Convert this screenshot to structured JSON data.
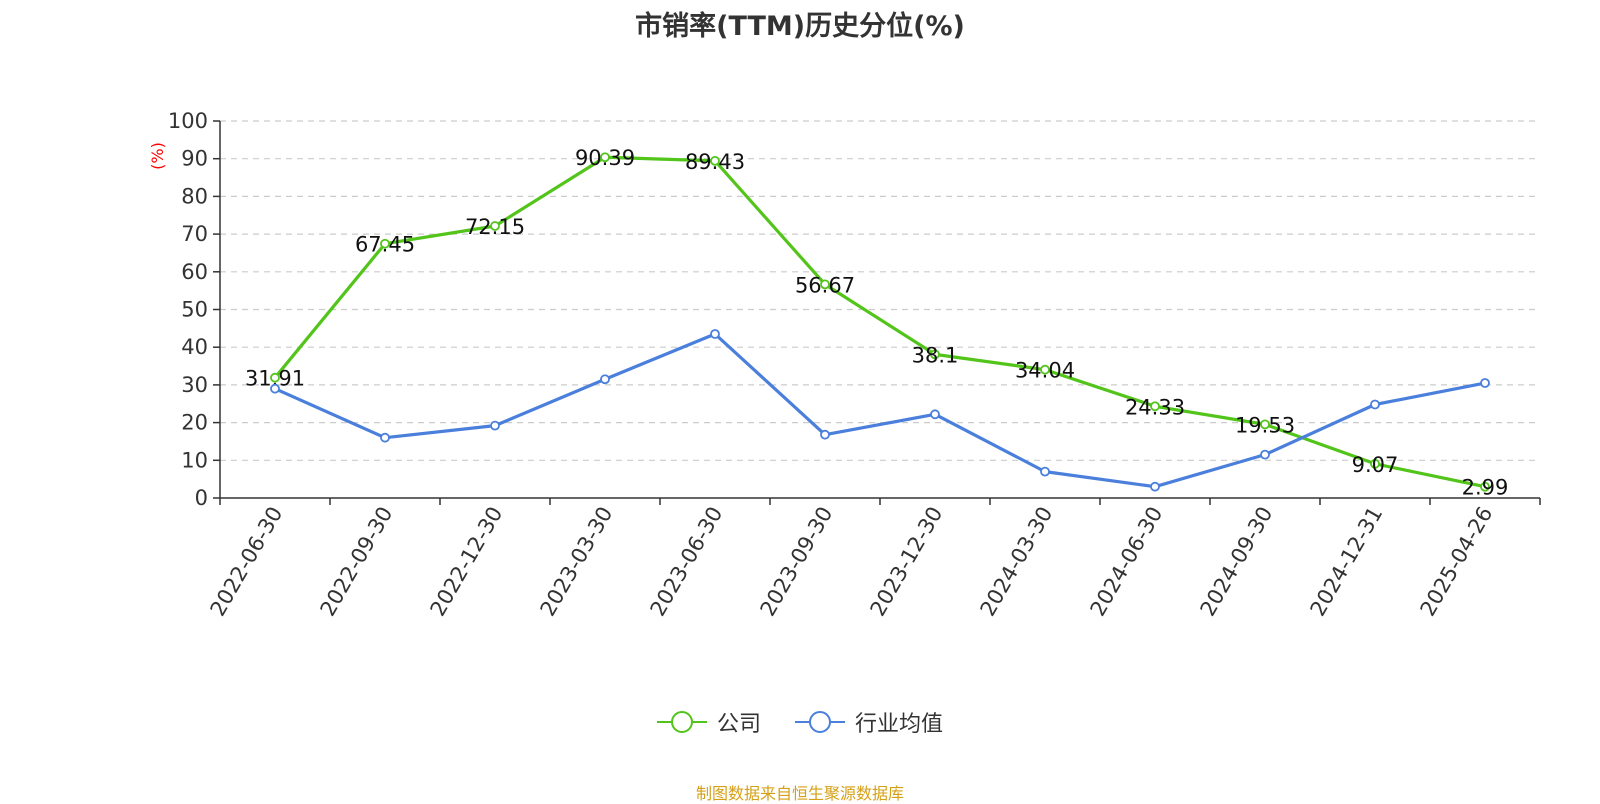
{
  "chart_data": {
    "type": "line",
    "title": "市销率(TTM)历史分位(%)",
    "ylabel": "(%)",
    "ylim": [
      0,
      100
    ],
    "yticks": [
      0,
      10,
      20,
      30,
      40,
      50,
      60,
      70,
      80,
      90,
      100
    ],
    "categories": [
      "2022-06-30",
      "2022-09-30",
      "2022-12-30",
      "2023-03-30",
      "2023-06-30",
      "2023-09-30",
      "2023-12-30",
      "2024-03-30",
      "2024-06-30",
      "2024-09-30",
      "2024-12-31",
      "2025-04-26"
    ],
    "series": [
      {
        "name": "公司",
        "color": "#52c41a",
        "values": [
          31.91,
          67.45,
          72.15,
          90.39,
          89.43,
          56.67,
          38.1,
          34.04,
          24.33,
          19.53,
          9.07,
          2.99
        ],
        "labels": [
          "31.91",
          "67.45",
          "72.15",
          "90.39",
          "89.43",
          "56.67",
          "38.1",
          "34.04",
          "24.33",
          "19.53",
          "9.07",
          "2.99"
        ]
      },
      {
        "name": "行业均值",
        "color": "#4a7fdc",
        "values": [
          29,
          16,
          19.2,
          31.5,
          43.5,
          16.8,
          22.2,
          7,
          3,
          11.5,
          24.8,
          30.5
        ]
      }
    ],
    "grid": true,
    "legend_position": "bottom"
  },
  "footer": {
    "source": "制图数据来自恒生聚源数据库"
  }
}
